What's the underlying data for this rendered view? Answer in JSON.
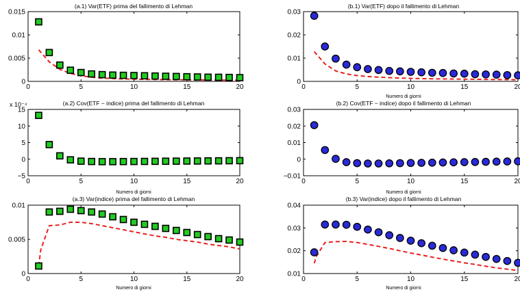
{
  "chart_data": [
    {
      "id": "a1",
      "type": "scatter",
      "title": "(a.1) Var(ETF) prima del fallimento di Lehman",
      "xlabel": "",
      "ylabel": "",
      "xlim": [
        0,
        20
      ],
      "ylim": [
        0,
        0.015
      ],
      "xticks": [
        0,
        5,
        10,
        15,
        20
      ],
      "xtick_labels": [
        "0",
        "5",
        "10",
        "15",
        "20"
      ],
      "yticks": [
        0,
        0.005,
        0.01,
        0.015
      ],
      "ytick_labels": [
        "0",
        "0.005",
        "0.01",
        "0.015"
      ],
      "tick_exponent": "",
      "marker": "square",
      "marker_color": "#22cc22",
      "x": [
        1,
        2,
        3,
        4,
        5,
        6,
        7,
        8,
        9,
        10,
        11,
        12,
        13,
        14,
        15,
        16,
        17,
        18,
        19,
        20
      ],
      "points": [
        0.0128,
        0.0062,
        0.0035,
        0.0024,
        0.0019,
        0.0016,
        0.00145,
        0.00135,
        0.0013,
        0.00125,
        0.0012,
        0.00115,
        0.0011,
        0.00105,
        0.001,
        0.00095,
        0.0009,
        0.00088,
        0.00085,
        0.0008
      ],
      "line_x": [
        1,
        2,
        3,
        4,
        5,
        6,
        7,
        8,
        9,
        10,
        11,
        12,
        13,
        14,
        15,
        16,
        17,
        18,
        19,
        20
      ],
      "line": [
        0.0068,
        0.0042,
        0.0026,
        0.0017,
        0.0012,
        0.0009,
        0.0007,
        0.0006,
        0.00052,
        0.00047,
        0.00043,
        0.0004,
        0.00037,
        0.00035,
        0.00033,
        0.00031,
        0.0003,
        0.00028,
        0.00027,
        0.00026
      ],
      "line_color": "#e8201c"
    },
    {
      "id": "b1",
      "type": "scatter",
      "title": "(b.1) Var(ETF) dopo il fallimento di Lehman",
      "xlabel": "Numero di giorni",
      "ylabel": "",
      "xlim": [
        0,
        20
      ],
      "ylim": [
        0,
        0.03
      ],
      "xticks": [
        0,
        5,
        10,
        15,
        20
      ],
      "xtick_labels": [
        "0",
        "5",
        "10",
        "15",
        "20"
      ],
      "yticks": [
        0,
        0.01,
        0.02,
        0.03
      ],
      "ytick_labels": [
        "0",
        "0.01",
        "0.02",
        "0.03"
      ],
      "tick_exponent": "",
      "marker": "circle",
      "marker_color": "#2a2ad8",
      "x": [
        1,
        2,
        3,
        4,
        5,
        6,
        7,
        8,
        9,
        10,
        11,
        12,
        13,
        14,
        15,
        16,
        17,
        18,
        19,
        20
      ],
      "points": [
        0.0282,
        0.015,
        0.0098,
        0.0072,
        0.0061,
        0.0053,
        0.0049,
        0.0045,
        0.0043,
        0.0041,
        0.0039,
        0.0037,
        0.0036,
        0.0034,
        0.0033,
        0.0031,
        0.003,
        0.0029,
        0.0027,
        0.0026
      ],
      "line_x": [
        1,
        2,
        3,
        4,
        5,
        6,
        7,
        8,
        9,
        10,
        11,
        12,
        13,
        14,
        15,
        16,
        17,
        18,
        19,
        20
      ],
      "line": [
        0.0128,
        0.0075,
        0.0045,
        0.0032,
        0.0025,
        0.0021,
        0.0018,
        0.0016,
        0.0014,
        0.0013,
        0.0012,
        0.0011,
        0.00105,
        0.001,
        0.00095,
        0.0009,
        0.00085,
        0.0008,
        0.00075,
        0.0007
      ],
      "line_color": "#e8201c"
    },
    {
      "id": "a2",
      "type": "scatter",
      "title": "(a.2) Cov(ETF − indice) prima del fallimento di Lehman",
      "xlabel": "Numero di giorni",
      "ylabel": "",
      "xlim": [
        0,
        20
      ],
      "ylim": [
        -5,
        15
      ],
      "xticks": [
        0,
        5,
        10,
        15,
        20
      ],
      "xtick_labels": [
        "0",
        "5",
        "10",
        "15",
        "20"
      ],
      "yticks": [
        -5,
        0,
        5,
        10,
        15
      ],
      "ytick_labels": [
        "−5",
        "0",
        "5",
        "10",
        "15"
      ],
      "tick_exponent": "x 10⁻⁴",
      "marker": "square",
      "marker_color": "#22cc22",
      "x": [
        1,
        2,
        3,
        4,
        5,
        6,
        7,
        8,
        9,
        10,
        11,
        12,
        13,
        14,
        15,
        16,
        17,
        18,
        19,
        20
      ],
      "points": [
        13.2,
        4.4,
        1.0,
        -0.2,
        -0.6,
        -0.7,
        -0.75,
        -0.75,
        -0.72,
        -0.7,
        -0.68,
        -0.65,
        -0.62,
        -0.6,
        -0.57,
        -0.55,
        -0.52,
        -0.5,
        -0.47,
        -0.45
      ],
      "line_x": [],
      "line": [],
      "line_color": "#e8201c"
    },
    {
      "id": "b2",
      "type": "scatter",
      "title": "(b.2) Cov(ETF − indice) dopo il fallimento di Lehman",
      "xlabel": "Numero di giorni",
      "ylabel": "",
      "xlim": [
        0,
        20
      ],
      "ylim": [
        -0.01,
        0.03
      ],
      "xticks": [
        0,
        5,
        10,
        15,
        20
      ],
      "xtick_labels": [
        "0",
        "5",
        "10",
        "15",
        "20"
      ],
      "yticks": [
        -0.01,
        0,
        0.01,
        0.02,
        0.03
      ],
      "ytick_labels": [
        "−0.01",
        "0",
        "0.01",
        "0.02",
        "0.03"
      ],
      "tick_exponent": "",
      "marker": "circle",
      "marker_color": "#2a2ad8",
      "x": [
        1,
        2,
        3,
        4,
        5,
        6,
        7,
        8,
        9,
        10,
        11,
        12,
        13,
        14,
        15,
        16,
        17,
        18,
        19,
        20
      ],
      "points": [
        0.0205,
        0.0055,
        0.0002,
        -0.0018,
        -0.0024,
        -0.0026,
        -0.0026,
        -0.0025,
        -0.0024,
        -0.0023,
        -0.0022,
        -0.0021,
        -0.002,
        -0.0019,
        -0.0018,
        -0.0017,
        -0.0016,
        -0.0015,
        -0.0014,
        -0.0013
      ],
      "line_x": [],
      "line": [],
      "line_color": "#e8201c"
    },
    {
      "id": "a3",
      "type": "scatter",
      "title": "(a.3) Var(indice) prima del fallimento di Lehman",
      "xlabel": "Numero di giorni",
      "ylabel": "",
      "xlim": [
        0,
        20
      ],
      "ylim": [
        0,
        0.01
      ],
      "xticks": [
        0,
        5,
        10,
        15,
        20
      ],
      "xtick_labels": [
        "0",
        "5",
        "10",
        "15",
        "20"
      ],
      "yticks": [
        0,
        0.005,
        0.01
      ],
      "ytick_labels": [
        "0",
        "0.005",
        "0.01"
      ],
      "tick_exponent": "",
      "marker": "square",
      "marker_color": "#22cc22",
      "x": [
        1,
        2,
        3,
        4,
        5,
        6,
        7,
        8,
        9,
        10,
        11,
        12,
        13,
        14,
        15,
        16,
        17,
        18,
        19,
        20
      ],
      "points": [
        0.0011,
        0.009,
        0.0091,
        0.0094,
        0.0092,
        0.009,
        0.0087,
        0.0083,
        0.0079,
        0.0075,
        0.0072,
        0.0069,
        0.0066,
        0.0063,
        0.006,
        0.0057,
        0.0054,
        0.0051,
        0.0049,
        0.0046
      ],
      "line_x": [
        1,
        1.2,
        2,
        3,
        4,
        5,
        6,
        7,
        8,
        9,
        10,
        11,
        12,
        13,
        14,
        15,
        16,
        17,
        18,
        19,
        20
      ],
      "line": [
        0.0011,
        0.0035,
        0.007,
        0.0071,
        0.0075,
        0.0075,
        0.0073,
        0.007,
        0.0067,
        0.0064,
        0.0061,
        0.0058,
        0.0055,
        0.0053,
        0.005,
        0.0048,
        0.0046,
        0.0043,
        0.0041,
        0.0039,
        0.0036
      ],
      "line_color": "#e8201c"
    },
    {
      "id": "b3",
      "type": "scatter",
      "title": "(b.3) Var(indice) dopo il fallimento di Lehman",
      "xlabel": "Numero di giorni",
      "ylabel": "",
      "xlim": [
        0,
        20
      ],
      "ylim": [
        0.01,
        0.04
      ],
      "xticks": [
        0,
        5,
        10,
        15,
        20
      ],
      "xtick_labels": [
        "0",
        "5",
        "10",
        "15",
        "20"
      ],
      "yticks": [
        0.01,
        0.02,
        0.03,
        0.04
      ],
      "ytick_labels": [
        "0.01",
        "0.02",
        "0.03",
        "0.04"
      ],
      "tick_exponent": "",
      "marker": "circle",
      "marker_color": "#2a2ad8",
      "x": [
        1,
        2,
        3,
        4,
        5,
        6,
        7,
        8,
        9,
        10,
        11,
        12,
        13,
        14,
        15,
        16,
        17,
        18,
        19,
        20
      ],
      "points": [
        0.0193,
        0.0315,
        0.0315,
        0.0314,
        0.0305,
        0.0293,
        0.0281,
        0.0268,
        0.0256,
        0.0244,
        0.0233,
        0.0222,
        0.0212,
        0.0202,
        0.0192,
        0.0183,
        0.0173,
        0.0164,
        0.0155,
        0.0147
      ],
      "line_x": [
        1,
        1.2,
        2,
        3,
        4,
        5,
        6,
        7,
        8,
        9,
        10,
        11,
        12,
        13,
        14,
        15,
        16,
        17,
        18,
        19,
        20
      ],
      "line": [
        0.0145,
        0.0175,
        0.0236,
        0.024,
        0.0241,
        0.0236,
        0.0228,
        0.0219,
        0.021,
        0.02,
        0.019,
        0.0181,
        0.0172,
        0.0163,
        0.0155,
        0.0147,
        0.014,
        0.0132,
        0.0125,
        0.0119,
        0.0113
      ],
      "line_color": "#e8201c"
    }
  ]
}
